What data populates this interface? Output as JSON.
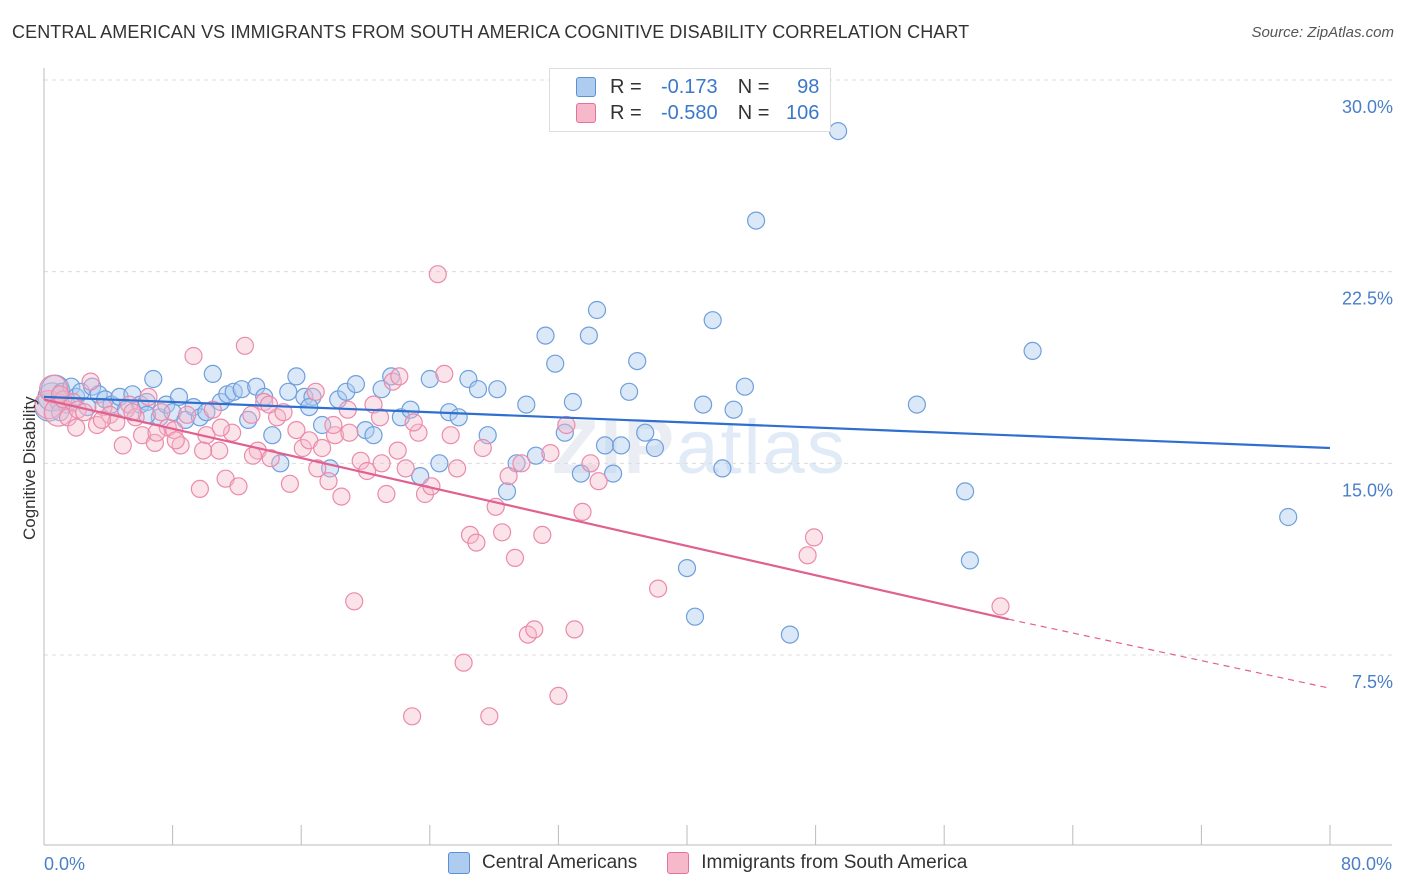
{
  "title": "CENTRAL AMERICAN VS IMMIGRANTS FROM SOUTH AMERICA COGNITIVE DISABILITY CORRELATION CHART",
  "source": "Source: ZipAtlas.com",
  "watermark": {
    "zip": "ZIP",
    "atlas": "atlas"
  },
  "colors": {
    "blue": "#5b8fd6",
    "blue_fill": "#aecbf0",
    "pink": "#e8709a",
    "pink_fill": "#f6b8cb",
    "axis_text": "#4a7fc8"
  },
  "legend_top": {
    "rows": [
      {
        "r_label": "R =",
        "r_value": "-0.173",
        "n_label": "N =",
        "n_value": "98"
      },
      {
        "r_label": "R =",
        "r_value": "-0.580",
        "n_label": "N =",
        "n_value": "106"
      }
    ]
  },
  "legend_bottom": [
    "Central Americans",
    "Immigrants from South America"
  ],
  "chart_data": {
    "type": "scatter",
    "ylabel": "Cognitive Disability",
    "xlim": [
      0,
      80
    ],
    "ylim": [
      0,
      31
    ],
    "x_tick_labels": [
      "0.0%",
      "80.0%"
    ],
    "y_ticks": [
      {
        "value": 7.5,
        "label": "7.5%"
      },
      {
        "value": 15.0,
        "label": "15.0%"
      },
      {
        "value": 22.5,
        "label": "22.5%"
      },
      {
        "value": 30.0,
        "label": "30.0%"
      }
    ],
    "series": [
      {
        "name": "Central Americans",
        "trend": {
          "x0": 0,
          "y0": 17.6,
          "x1": 80,
          "y1": 15.6
        },
        "points": [
          [
            0.3,
            17.2
          ],
          [
            0.5,
            17.6
          ],
          [
            0.7,
            17.9
          ],
          [
            0.9,
            17.4
          ],
          [
            1.1,
            17.8
          ],
          [
            1.4,
            17.3
          ],
          [
            1.7,
            18.0
          ],
          [
            2.0,
            17.6
          ],
          [
            2.3,
            17.8
          ],
          [
            2.7,
            17.2
          ],
          [
            3.0,
            18.0
          ],
          [
            3.4,
            17.7
          ],
          [
            3.8,
            17.5
          ],
          [
            4.2,
            17.3
          ],
          [
            4.7,
            17.6
          ],
          [
            5.1,
            17.1
          ],
          [
            5.5,
            17.7
          ],
          [
            6.0,
            17.3
          ],
          [
            6.4,
            17.4
          ],
          [
            6.8,
            18.3
          ],
          [
            7.2,
            16.8
          ],
          [
            7.6,
            17.3
          ],
          [
            8.0,
            17.0
          ],
          [
            8.4,
            17.6
          ],
          [
            8.8,
            16.7
          ],
          [
            9.3,
            17.2
          ],
          [
            9.7,
            16.8
          ],
          [
            10.1,
            17.0
          ],
          [
            10.5,
            18.5
          ],
          [
            11.0,
            17.4
          ],
          [
            11.4,
            17.7
          ],
          [
            11.8,
            17.8
          ],
          [
            12.3,
            17.9
          ],
          [
            12.7,
            16.7
          ],
          [
            13.2,
            18.0
          ],
          [
            13.7,
            17.6
          ],
          [
            14.2,
            16.1
          ],
          [
            14.7,
            15.0
          ],
          [
            15.2,
            17.8
          ],
          [
            15.7,
            18.4
          ],
          [
            16.2,
            17.6
          ],
          [
            16.7,
            17.6
          ],
          [
            17.3,
            16.5
          ],
          [
            17.8,
            14.8
          ],
          [
            18.3,
            17.5
          ],
          [
            18.8,
            17.8
          ],
          [
            19.4,
            18.1
          ],
          [
            20.0,
            16.3
          ],
          [
            20.5,
            16.1
          ],
          [
            21.0,
            17.9
          ],
          [
            21.6,
            18.4
          ],
          [
            22.2,
            16.8
          ],
          [
            22.8,
            17.1
          ],
          [
            23.4,
            14.5
          ],
          [
            24.0,
            18.3
          ],
          [
            24.6,
            15.0
          ],
          [
            25.2,
            17.0
          ],
          [
            25.8,
            16.8
          ],
          [
            26.4,
            18.3
          ],
          [
            27.0,
            17.9
          ],
          [
            27.6,
            16.1
          ],
          [
            28.2,
            17.9
          ],
          [
            28.8,
            13.9
          ],
          [
            29.4,
            15.0
          ],
          [
            30.0,
            17.3
          ],
          [
            30.6,
            15.3
          ],
          [
            31.2,
            20.0
          ],
          [
            31.8,
            18.9
          ],
          [
            32.4,
            16.2
          ],
          [
            32.9,
            17.4
          ],
          [
            33.4,
            14.6
          ],
          [
            33.9,
            20.0
          ],
          [
            34.4,
            21.0
          ],
          [
            34.9,
            15.7
          ],
          [
            35.4,
            14.6
          ],
          [
            35.9,
            15.7
          ],
          [
            36.4,
            17.8
          ],
          [
            36.9,
            19.0
          ],
          [
            37.4,
            16.2
          ],
          [
            38.0,
            15.6
          ],
          [
            40.0,
            10.9
          ],
          [
            40.5,
            9.0
          ],
          [
            41.0,
            17.3
          ],
          [
            41.6,
            20.6
          ],
          [
            42.2,
            14.8
          ],
          [
            42.9,
            17.1
          ],
          [
            43.6,
            18.0
          ],
          [
            44.3,
            24.5
          ],
          [
            46.4,
            8.3
          ],
          [
            49.4,
            28.0
          ],
          [
            54.3,
            17.3
          ],
          [
            57.3,
            13.9
          ],
          [
            57.6,
            11.2
          ],
          [
            61.5,
            19.4
          ],
          [
            77.4,
            12.9
          ],
          [
            1.0,
            17.0
          ],
          [
            6.4,
            16.9
          ],
          [
            16.5,
            17.2
          ]
        ]
      },
      {
        "name": "Immigrants from South America",
        "trend": {
          "x0": 0,
          "y0": 17.5,
          "x1": 60,
          "y1": 8.9,
          "x2": 80,
          "y2": 6.2
        },
        "points": [
          [
            0.3,
            17.3
          ],
          [
            0.6,
            17.9
          ],
          [
            0.9,
            17.0
          ],
          [
            1.2,
            17.5
          ],
          [
            1.5,
            16.8
          ],
          [
            1.8,
            17.4
          ],
          [
            2.1,
            17.1
          ],
          [
            2.5,
            17.0
          ],
          [
            2.9,
            18.2
          ],
          [
            3.3,
            16.5
          ],
          [
            3.7,
            17.2
          ],
          [
            4.1,
            16.9
          ],
          [
            4.5,
            16.6
          ],
          [
            4.9,
            15.7
          ],
          [
            5.3,
            17.3
          ],
          [
            5.7,
            16.8
          ],
          [
            6.1,
            16.1
          ],
          [
            6.5,
            17.6
          ],
          [
            6.9,
            15.8
          ],
          [
            7.3,
            17.0
          ],
          [
            7.7,
            16.4
          ],
          [
            8.1,
            16.3
          ],
          [
            8.5,
            15.7
          ],
          [
            8.9,
            16.9
          ],
          [
            9.3,
            19.2
          ],
          [
            9.7,
            14.0
          ],
          [
            10.1,
            16.1
          ],
          [
            10.5,
            17.1
          ],
          [
            10.9,
            15.5
          ],
          [
            11.3,
            14.4
          ],
          [
            11.7,
            16.2
          ],
          [
            12.1,
            14.1
          ],
          [
            12.5,
            19.6
          ],
          [
            12.9,
            16.9
          ],
          [
            13.3,
            15.5
          ],
          [
            13.7,
            17.4
          ],
          [
            14.1,
            15.2
          ],
          [
            14.5,
            16.8
          ],
          [
            14.9,
            17.0
          ],
          [
            15.3,
            14.2
          ],
          [
            15.7,
            16.3
          ],
          [
            16.1,
            15.6
          ],
          [
            16.5,
            15.9
          ],
          [
            16.9,
            17.8
          ],
          [
            17.3,
            15.6
          ],
          [
            17.7,
            14.3
          ],
          [
            18.1,
            16.1
          ],
          [
            18.5,
            13.7
          ],
          [
            18.9,
            17.1
          ],
          [
            19.3,
            9.6
          ],
          [
            19.7,
            15.1
          ],
          [
            20.1,
            14.7
          ],
          [
            20.5,
            17.3
          ],
          [
            20.9,
            16.8
          ],
          [
            21.3,
            13.8
          ],
          [
            21.7,
            18.2
          ],
          [
            22.1,
            18.4
          ],
          [
            22.5,
            14.8
          ],
          [
            22.9,
            5.1
          ],
          [
            23.3,
            16.2
          ],
          [
            23.7,
            13.8
          ],
          [
            24.1,
            14.1
          ],
          [
            24.5,
            22.4
          ],
          [
            24.9,
            18.5
          ],
          [
            25.3,
            16.1
          ],
          [
            25.7,
            14.8
          ],
          [
            26.1,
            7.2
          ],
          [
            26.5,
            12.2
          ],
          [
            26.9,
            11.9
          ],
          [
            27.3,
            15.6
          ],
          [
            27.7,
            5.1
          ],
          [
            28.1,
            13.3
          ],
          [
            28.5,
            12.3
          ],
          [
            28.9,
            14.5
          ],
          [
            29.3,
            11.3
          ],
          [
            29.7,
            15.0
          ],
          [
            30.1,
            8.3
          ],
          [
            30.5,
            8.5
          ],
          [
            31.0,
            12.2
          ],
          [
            31.5,
            15.4
          ],
          [
            32.0,
            5.9
          ],
          [
            32.5,
            16.5
          ],
          [
            33.0,
            8.5
          ],
          [
            33.5,
            13.1
          ],
          [
            34.0,
            15.0
          ],
          [
            34.5,
            14.3
          ],
          [
            38.2,
            10.1
          ],
          [
            47.5,
            11.4
          ],
          [
            47.9,
            12.1
          ],
          [
            59.5,
            9.4
          ],
          [
            1.0,
            17.7
          ],
          [
            2.0,
            16.4
          ],
          [
            3.6,
            16.7
          ],
          [
            5.5,
            17.0
          ],
          [
            7.0,
            16.2
          ],
          [
            8.2,
            15.9
          ],
          [
            9.9,
            15.5
          ],
          [
            11.0,
            16.4
          ],
          [
            13.0,
            15.3
          ],
          [
            14.0,
            17.3
          ],
          [
            17.0,
            14.8
          ],
          [
            18.0,
            16.5
          ],
          [
            19.0,
            16.2
          ],
          [
            21.0,
            15.0
          ],
          [
            22.0,
            15.5
          ],
          [
            23.0,
            16.6
          ]
        ]
      }
    ]
  }
}
